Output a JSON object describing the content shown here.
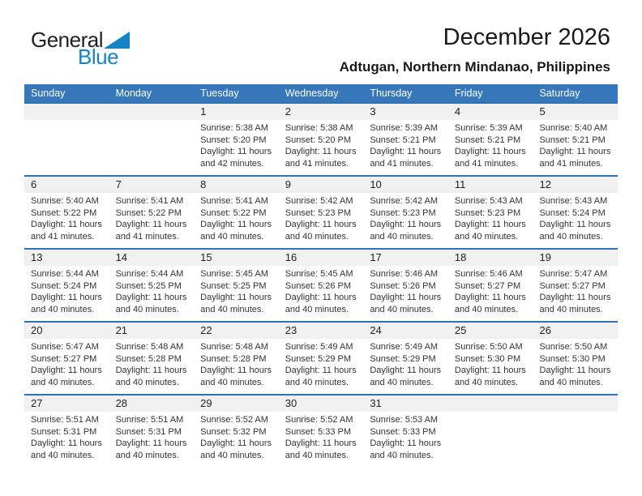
{
  "logo": {
    "text_top": "General",
    "text_bottom": "Blue"
  },
  "header": {
    "title": "December 2026",
    "subtitle": "Adtugan, Northern Mindanao, Philippines"
  },
  "colors": {
    "header_bar": "#3577B9",
    "week_border": "#2E74B5",
    "day_band_bg": "#F0F0F0",
    "logo_blue": "#1583C5"
  },
  "calendar": {
    "weekdays": [
      "Sunday",
      "Monday",
      "Tuesday",
      "Wednesday",
      "Thursday",
      "Friday",
      "Saturday"
    ],
    "weeks": [
      [
        null,
        null,
        {
          "day": "1",
          "sunrise": "Sunrise: 5:38 AM",
          "sunset": "Sunset: 5:20 PM",
          "daylight": [
            "Daylight: 11 hours",
            "and 42 minutes."
          ]
        },
        {
          "day": "2",
          "sunrise": "Sunrise: 5:38 AM",
          "sunset": "Sunset: 5:20 PM",
          "daylight": [
            "Daylight: 11 hours",
            "and 41 minutes."
          ]
        },
        {
          "day": "3",
          "sunrise": "Sunrise: 5:39 AM",
          "sunset": "Sunset: 5:21 PM",
          "daylight": [
            "Daylight: 11 hours",
            "and 41 minutes."
          ]
        },
        {
          "day": "4",
          "sunrise": "Sunrise: 5:39 AM",
          "sunset": "Sunset: 5:21 PM",
          "daylight": [
            "Daylight: 11 hours",
            "and 41 minutes."
          ]
        },
        {
          "day": "5",
          "sunrise": "Sunrise: 5:40 AM",
          "sunset": "Sunset: 5:21 PM",
          "daylight": [
            "Daylight: 11 hours",
            "and 41 minutes."
          ]
        }
      ],
      [
        {
          "day": "6",
          "sunrise": "Sunrise: 5:40 AM",
          "sunset": "Sunset: 5:22 PM",
          "daylight": [
            "Daylight: 11 hours",
            "and 41 minutes."
          ]
        },
        {
          "day": "7",
          "sunrise": "Sunrise: 5:41 AM",
          "sunset": "Sunset: 5:22 PM",
          "daylight": [
            "Daylight: 11 hours",
            "and 41 minutes."
          ]
        },
        {
          "day": "8",
          "sunrise": "Sunrise: 5:41 AM",
          "sunset": "Sunset: 5:22 PM",
          "daylight": [
            "Daylight: 11 hours",
            "and 40 minutes."
          ]
        },
        {
          "day": "9",
          "sunrise": "Sunrise: 5:42 AM",
          "sunset": "Sunset: 5:23 PM",
          "daylight": [
            "Daylight: 11 hours",
            "and 40 minutes."
          ]
        },
        {
          "day": "10",
          "sunrise": "Sunrise: 5:42 AM",
          "sunset": "Sunset: 5:23 PM",
          "daylight": [
            "Daylight: 11 hours",
            "and 40 minutes."
          ]
        },
        {
          "day": "11",
          "sunrise": "Sunrise: 5:43 AM",
          "sunset": "Sunset: 5:23 PM",
          "daylight": [
            "Daylight: 11 hours",
            "and 40 minutes."
          ]
        },
        {
          "day": "12",
          "sunrise": "Sunrise: 5:43 AM",
          "sunset": "Sunset: 5:24 PM",
          "daylight": [
            "Daylight: 11 hours",
            "and 40 minutes."
          ]
        }
      ],
      [
        {
          "day": "13",
          "sunrise": "Sunrise: 5:44 AM",
          "sunset": "Sunset: 5:24 PM",
          "daylight": [
            "Daylight: 11 hours",
            "and 40 minutes."
          ]
        },
        {
          "day": "14",
          "sunrise": "Sunrise: 5:44 AM",
          "sunset": "Sunset: 5:25 PM",
          "daylight": [
            "Daylight: 11 hours",
            "and 40 minutes."
          ]
        },
        {
          "day": "15",
          "sunrise": "Sunrise: 5:45 AM",
          "sunset": "Sunset: 5:25 PM",
          "daylight": [
            "Daylight: 11 hours",
            "and 40 minutes."
          ]
        },
        {
          "day": "16",
          "sunrise": "Sunrise: 5:45 AM",
          "sunset": "Sunset: 5:26 PM",
          "daylight": [
            "Daylight: 11 hours",
            "and 40 minutes."
          ]
        },
        {
          "day": "17",
          "sunrise": "Sunrise: 5:46 AM",
          "sunset": "Sunset: 5:26 PM",
          "daylight": [
            "Daylight: 11 hours",
            "and 40 minutes."
          ]
        },
        {
          "day": "18",
          "sunrise": "Sunrise: 5:46 AM",
          "sunset": "Sunset: 5:27 PM",
          "daylight": [
            "Daylight: 11 hours",
            "and 40 minutes."
          ]
        },
        {
          "day": "19",
          "sunrise": "Sunrise: 5:47 AM",
          "sunset": "Sunset: 5:27 PM",
          "daylight": [
            "Daylight: 11 hours",
            "and 40 minutes."
          ]
        }
      ],
      [
        {
          "day": "20",
          "sunrise": "Sunrise: 5:47 AM",
          "sunset": "Sunset: 5:27 PM",
          "daylight": [
            "Daylight: 11 hours",
            "and 40 minutes."
          ]
        },
        {
          "day": "21",
          "sunrise": "Sunrise: 5:48 AM",
          "sunset": "Sunset: 5:28 PM",
          "daylight": [
            "Daylight: 11 hours",
            "and 40 minutes."
          ]
        },
        {
          "day": "22",
          "sunrise": "Sunrise: 5:48 AM",
          "sunset": "Sunset: 5:28 PM",
          "daylight": [
            "Daylight: 11 hours",
            "and 40 minutes."
          ]
        },
        {
          "day": "23",
          "sunrise": "Sunrise: 5:49 AM",
          "sunset": "Sunset: 5:29 PM",
          "daylight": [
            "Daylight: 11 hours",
            "and 40 minutes."
          ]
        },
        {
          "day": "24",
          "sunrise": "Sunrise: 5:49 AM",
          "sunset": "Sunset: 5:29 PM",
          "daylight": [
            "Daylight: 11 hours",
            "and 40 minutes."
          ]
        },
        {
          "day": "25",
          "sunrise": "Sunrise: 5:50 AM",
          "sunset": "Sunset: 5:30 PM",
          "daylight": [
            "Daylight: 11 hours",
            "and 40 minutes."
          ]
        },
        {
          "day": "26",
          "sunrise": "Sunrise: 5:50 AM",
          "sunset": "Sunset: 5:30 PM",
          "daylight": [
            "Daylight: 11 hours",
            "and 40 minutes."
          ]
        }
      ],
      [
        {
          "day": "27",
          "sunrise": "Sunrise: 5:51 AM",
          "sunset": "Sunset: 5:31 PM",
          "daylight": [
            "Daylight: 11 hours",
            "and 40 minutes."
          ]
        },
        {
          "day": "28",
          "sunrise": "Sunrise: 5:51 AM",
          "sunset": "Sunset: 5:31 PM",
          "daylight": [
            "Daylight: 11 hours",
            "and 40 minutes."
          ]
        },
        {
          "day": "29",
          "sunrise": "Sunrise: 5:52 AM",
          "sunset": "Sunset: 5:32 PM",
          "daylight": [
            "Daylight: 11 hours",
            "and 40 minutes."
          ]
        },
        {
          "day": "30",
          "sunrise": "Sunrise: 5:52 AM",
          "sunset": "Sunset: 5:33 PM",
          "daylight": [
            "Daylight: 11 hours",
            "and 40 minutes."
          ]
        },
        {
          "day": "31",
          "sunrise": "Sunrise: 5:53 AM",
          "sunset": "Sunset: 5:33 PM",
          "daylight": [
            "Daylight: 11 hours",
            "and 40 minutes."
          ]
        },
        null,
        null
      ]
    ]
  }
}
